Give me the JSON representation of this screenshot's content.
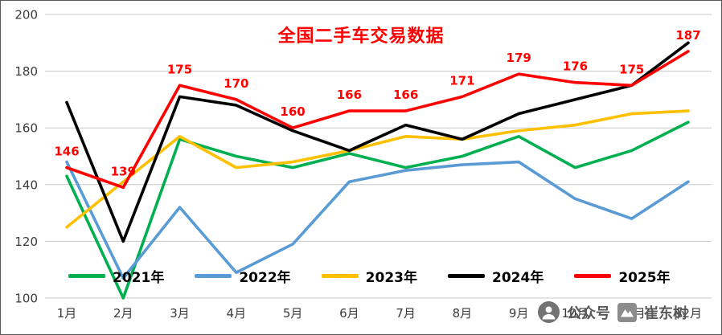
{
  "chart_data": {
    "type": "line",
    "title": "全国二手车交易数据",
    "categories": [
      "1月",
      "2月",
      "3月",
      "4月",
      "5月",
      "6月",
      "7月",
      "8月",
      "9月",
      "10月",
      "11月",
      "12月"
    ],
    "y_axis": {
      "min": 100,
      "max": 200,
      "step": 20,
      "ticks": [
        100,
        120,
        140,
        160,
        180,
        200
      ]
    },
    "grid": true,
    "legend_position": "bottom",
    "series": [
      {
        "name": "2021年",
        "color": "#00B050",
        "values": [
          143,
          100,
          156,
          150,
          146,
          151,
          146,
          150,
          157,
          146,
          152,
          162
        ]
      },
      {
        "name": "2022年",
        "color": "#5B9BD5",
        "values": [
          148,
          107,
          132,
          109,
          119,
          141,
          145,
          147,
          148,
          135,
          128,
          141
        ]
      },
      {
        "name": "2023年",
        "color": "#FFC000",
        "values": [
          125,
          141,
          157,
          146,
          148,
          152,
          157,
          156,
          159,
          161,
          165,
          166
        ]
      },
      {
        "name": "2024年",
        "color": "#000000",
        "values": [
          169,
          120,
          171,
          168,
          159,
          152,
          161,
          156,
          165,
          170,
          175,
          190
        ]
      },
      {
        "name": "2025年",
        "color": "#FF0000",
        "values": [
          146,
          139,
          175,
          170,
          160,
          166,
          166,
          171,
          179,
          176,
          175,
          187
        ],
        "data_labels": true
      }
    ]
  },
  "watermark": {
    "account_label": "公众号",
    "author": "崔东树"
  },
  "colors": {
    "title": "#FF0000",
    "axis_text": "#3b3b3b",
    "gridline": "#C8C8C8",
    "border": "#595959",
    "watermark_text": "#595959"
  }
}
